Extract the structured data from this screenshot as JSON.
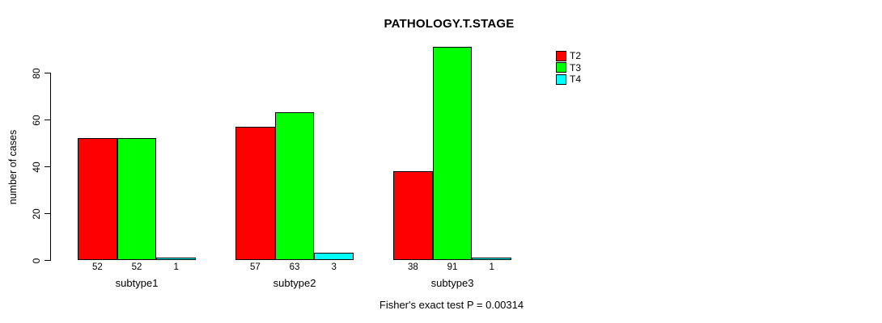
{
  "chart_data": {
    "type": "bar",
    "title": "PATHOLOGY.T.STAGE",
    "xlabel": "",
    "ylabel": "number of cases",
    "categories": [
      "subtype1",
      "subtype2",
      "subtype3"
    ],
    "series": [
      {
        "name": "T2",
        "color": "#ff0000",
        "values": [
          52,
          57,
          38
        ]
      },
      {
        "name": "T3",
        "color": "#00ff00",
        "values": [
          52,
          63,
          91
        ]
      },
      {
        "name": "T4",
        "color": "#00ffff",
        "values": [
          1,
          3,
          1
        ]
      }
    ],
    "yticks": [
      0,
      20,
      40,
      60,
      80
    ],
    "ylim": [
      0,
      93
    ],
    "grid": false,
    "bar_value_labels_shown": true,
    "legend_position": "top-right",
    "annotation": "Fisher's exact test P = 0.00314"
  }
}
